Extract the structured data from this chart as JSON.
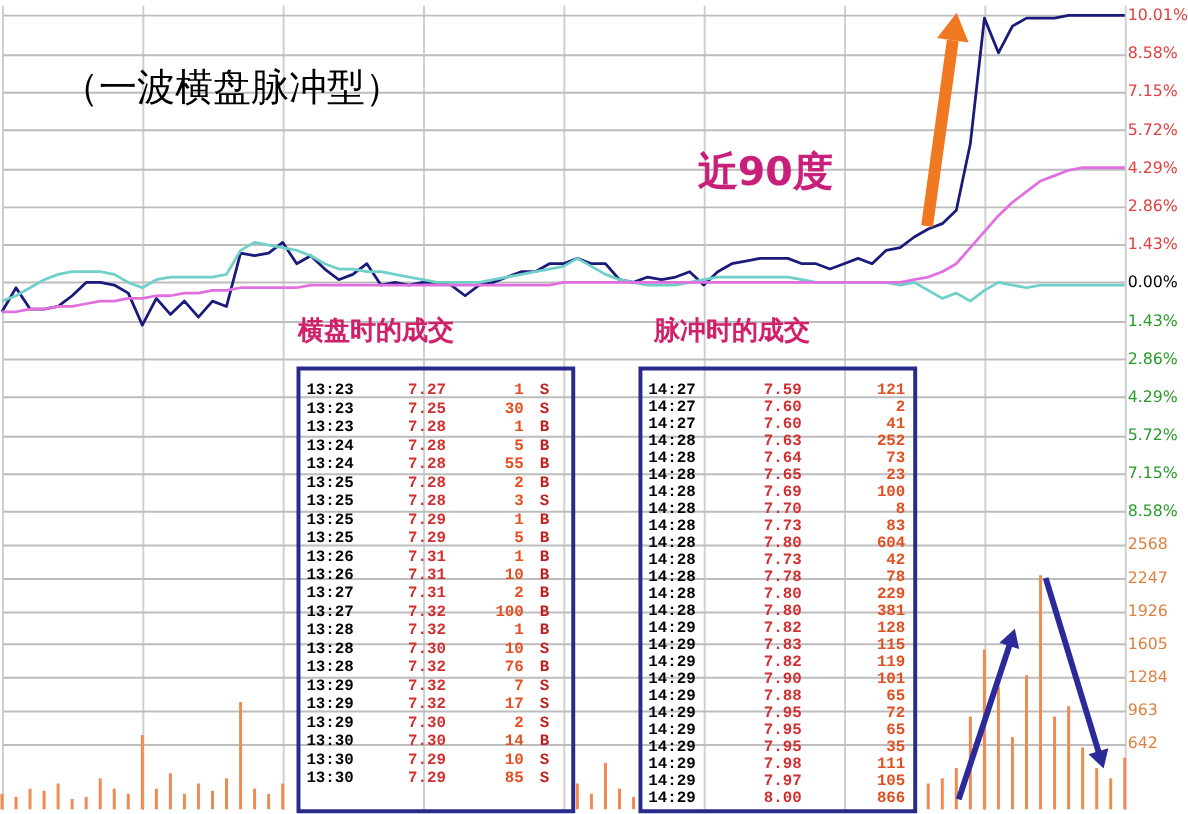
{
  "chart_data": [
    {
      "type": "line",
      "title": "（一波横盘脉冲型）",
      "tick_labels": "y",
      "grid": true,
      "categories": [
        null,
        null,
        null,
        null,
        null,
        null,
        null,
        null,
        null,
        null,
        null,
        null,
        null,
        null,
        null,
        null,
        null,
        null,
        null,
        null,
        null,
        null,
        null,
        null,
        null,
        null,
        null,
        null,
        null,
        null,
        null,
        null,
        null,
        null,
        null,
        null,
        null,
        null,
        null,
        null,
        null,
        null,
        null,
        null,
        null,
        null,
        null,
        null,
        null,
        null,
        null,
        null,
        null,
        null,
        null,
        null,
        null,
        null,
        null,
        null,
        null,
        null,
        null,
        null,
        null,
        null,
        null,
        null,
        null,
        null,
        null,
        null,
        null,
        null,
        null,
        null,
        null,
        null,
        null,
        null,
        null
      ],
      "ylim": [
        -9.0,
        10.4
      ],
      "yticks": [
        {
          "value": 10.01,
          "label": "10.01%"
        },
        {
          "value": 8.58,
          "label": "8.58%"
        },
        {
          "value": 7.15,
          "label": "7.15%"
        },
        {
          "value": 5.72,
          "label": "5.72%"
        },
        {
          "value": 4.29,
          "label": "4.29%"
        },
        {
          "value": 2.86,
          "label": "2.86%"
        },
        {
          "value": 1.43,
          "label": "1.43%"
        },
        {
          "value": 0,
          "label": "0.00%"
        },
        {
          "value": -1.43,
          "label": "1.43%"
        },
        {
          "value": -2.86,
          "label": "2.86%"
        },
        {
          "value": -4.29,
          "label": "4.29%"
        },
        {
          "value": -5.72,
          "label": "5.72%"
        },
        {
          "value": -7.15,
          "label": "7.15%"
        },
        {
          "value": -8.58,
          "label": "8.58%"
        }
      ],
      "series": [
        {
          "color": "#1a1a7a",
          "values": [
            -1.1,
            -0.2,
            -1.0,
            -1.0,
            -0.9,
            -0.5,
            0.0,
            0.0,
            -0.1,
            -0.4,
            -1.6,
            -0.6,
            -1.2,
            -0.7,
            -1.3,
            -0.7,
            -0.9,
            1.1,
            1.0,
            1.1,
            1.5,
            0.7,
            1.0,
            0.5,
            0.1,
            0.3,
            0.7,
            -0.1,
            0.0,
            -0.1,
            0.0,
            0.0,
            -0.1,
            -0.5,
            -0.1,
            0.0,
            0.2,
            0.4,
            0.4,
            0.7,
            0.7,
            0.9,
            0.7,
            0.7,
            0.1,
            0.0,
            0.2,
            0.1,
            0.2,
            0.4,
            -0.1,
            0.4,
            0.7,
            0.8,
            0.9,
            0.9,
            0.9,
            0.7,
            0.7,
            0.5,
            0.7,
            0.9,
            0.7,
            1.2,
            1.3,
            1.7,
            2.0,
            2.2,
            2.7,
            5.2,
            9.9,
            8.6,
            9.6,
            9.9,
            9.9,
            9.9,
            10.0,
            10.0,
            10.0,
            10.0,
            10.0
          ]
        },
        {
          "color": "#6fd0c8",
          "values": [
            -0.7,
            -0.5,
            -0.2,
            0.1,
            0.3,
            0.4,
            0.4,
            0.4,
            0.3,
            0.0,
            -0.2,
            0.1,
            0.2,
            0.2,
            0.2,
            0.2,
            0.3,
            1.2,
            1.5,
            1.4,
            1.3,
            1.2,
            1.0,
            0.7,
            0.5,
            0.5,
            0.4,
            0.4,
            0.3,
            0.2,
            0.1,
            0.0,
            0.0,
            0.0,
            0.0,
            0.1,
            0.2,
            0.3,
            0.4,
            0.5,
            0.6,
            0.9,
            0.6,
            0.3,
            0.1,
            0.0,
            -0.1,
            -0.1,
            -0.1,
            0.0,
            0.1,
            0.2,
            0.2,
            0.2,
            0.2,
            0.2,
            0.2,
            0.1,
            0.0,
            0.0,
            0.0,
            0.0,
            0.0,
            0.0,
            -0.1,
            0.0,
            -0.3,
            -0.6,
            -0.4,
            -0.7,
            -0.3,
            0.0,
            -0.1,
            -0.2,
            -0.1,
            -0.1,
            -0.1,
            -0.1,
            -0.1,
            -0.1,
            -0.1
          ]
        },
        {
          "color": "#e070e0",
          "values": [
            -1.1,
            -1.1,
            -1.0,
            -1.0,
            -0.9,
            -0.9,
            -0.8,
            -0.7,
            -0.7,
            -0.6,
            -0.6,
            -0.5,
            -0.5,
            -0.4,
            -0.4,
            -0.3,
            -0.3,
            -0.2,
            -0.2,
            -0.2,
            -0.2,
            -0.2,
            -0.1,
            -0.1,
            -0.1,
            -0.1,
            -0.1,
            -0.1,
            -0.1,
            -0.1,
            -0.1,
            -0.1,
            -0.1,
            -0.1,
            -0.1,
            -0.1,
            -0.1,
            -0.1,
            -0.1,
            -0.1,
            0.0,
            0.0,
            0.0,
            0.0,
            0.0,
            0.0,
            0.0,
            0.0,
            0.0,
            0.0,
            0.0,
            0.0,
            0.0,
            0.0,
            0.0,
            0.0,
            0.0,
            0.0,
            0.0,
            0.0,
            0.0,
            0.0,
            0.0,
            0.0,
            0.0,
            0.1,
            0.2,
            0.4,
            0.7,
            1.3,
            1.9,
            2.5,
            3.0,
            3.4,
            3.8,
            4.0,
            4.2,
            4.3,
            4.3,
            4.3,
            4.3
          ]
        }
      ],
      "annotations": [
        "近90度"
      ]
    },
    {
      "type": "bar",
      "tick_labels": "y",
      "grid": true,
      "categories": [
        null,
        null,
        null,
        null,
        null,
        null,
        null,
        null,
        null,
        null,
        null,
        null,
        null,
        null,
        null,
        null,
        null,
        null,
        null,
        null,
        null,
        null,
        null,
        null,
        null,
        null,
        null,
        null,
        null,
        null,
        null,
        null,
        null,
        null,
        null,
        null,
        null,
        null,
        null,
        null,
        null,
        null,
        null,
        null,
        null,
        null,
        null,
        null,
        null,
        null,
        null,
        null,
        null,
        null,
        null,
        null,
        null,
        null,
        null,
        null,
        null,
        null,
        null,
        null,
        null,
        null,
        null,
        null,
        null,
        null,
        null,
        null,
        null,
        null,
        null,
        null,
        null,
        null,
        null,
        null,
        null
      ],
      "ylim": [
        0,
        2780
      ],
      "yticks": [
        642,
        963,
        1284,
        1605,
        1926,
        2247,
        2568
      ],
      "series": [
        {
          "color": "#f08a50",
          "values": [
            150,
            120,
            200,
            180,
            250,
            100,
            120,
            300,
            200,
            150,
            720,
            200,
            350,
            150,
            250,
            180,
            300,
            1040,
            200,
            150,
            250,
            null,
            null,
            null,
            null,
            null,
            null,
            null,
            null,
            null,
            null,
            null,
            null,
            null,
            null,
            null,
            null,
            null,
            null,
            null,
            null,
            250,
            150,
            450,
            200,
            120,
            null,
            null,
            null,
            null,
            null,
            null,
            null,
            null,
            null,
            null,
            null,
            null,
            null,
            null,
            null,
            null,
            null,
            null,
            null,
            null,
            250,
            300,
            400,
            900,
            1550,
            1190,
            700,
            1300,
            2270,
            900,
            1000,
            600,
            400,
            300,
            500
          ]
        }
      ],
      "annotations": [
        "横盘时的成交",
        "脉冲时的成交",
        "13:23 7.27 1 S",
        "13:23 7.25 30 S",
        "13:23 7.28 1 B",
        "13:24 7.28 5 B",
        "13:24 7.28 55 B",
        "13:25 7.28 2 B",
        "13:25 7.28 3 S",
        "13:25 7.29 1 B",
        "13:25 7.29 5 B",
        "13:26 7.31 1 B",
        "13:26 7.31 10 B",
        "13:27 7.31 2 B",
        "13:27 7.32 100 B",
        "13:28 7.32 1 B",
        "13:28 7.30 10 S",
        "13:28 7.32 76 B",
        "13:29 7.32 7 S",
        "13:29 7.32 17 S",
        "13:29 7.30 2 S",
        "13:30 7.30 14 B",
        "13:30 7.29 10 S",
        "13:30 7.29 85 S",
        "14:27 7.59 121",
        "14:27 7.60 2",
        "14:27 7.60 41",
        "14:28 7.63 252",
        "14:28 7.64 73",
        "14:28 7.65 23",
        "14:28 7.69 100",
        "14:28 7.70 8",
        "14:28 7.73 83",
        "14:28 7.80 604",
        "14:28 7.73 42",
        "14:28 7.78 78",
        "14:28 7.80 229",
        "14:28 7.80 381",
        "14:29 7.82 128",
        "14:29 7.83 115",
        "14:29 7.82 119",
        "14:29 7.90 101",
        "14:29 7.88 65",
        "14:29 7.95 72",
        "14:29 7.95 65",
        "14:29 7.95 35",
        "14:29 7.98 111",
        "14:29 7.97 105",
        "14:29 8.00 866"
      ]
    }
  ]
}
